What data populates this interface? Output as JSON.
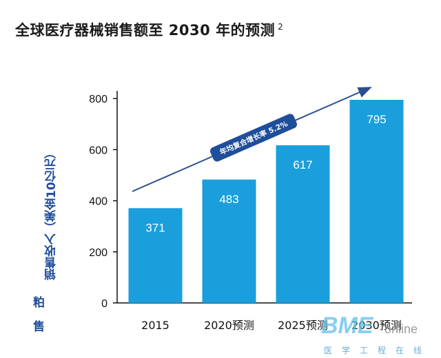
{
  "title_text": "全球医疗器械销售额至 2030 年的预测",
  "title_note": "2",
  "side_chars": [
    "粕",
    "售"
  ],
  "watermark": {
    "main": "BME",
    "online": "online",
    "sub": "医学工程在线"
  },
  "chart_data": {
    "type": "bar",
    "title": "全球医疗器械销售额至 2030 年的预测",
    "ylabel": "销售收入（美金10亿元）",
    "categories": [
      "2015",
      "2020预测",
      "2025预测",
      "2030预测"
    ],
    "values": [
      371,
      483,
      617,
      795
    ],
    "yticks": [
      0,
      200,
      400,
      600,
      800
    ],
    "ylim": [
      0,
      830
    ],
    "bar_color": "#1a9fdc",
    "trend_label": "年均复合增长率 5.2%",
    "trend_badge_color": "#1f4e9b",
    "trend_line_color": "#2a4f8f",
    "grid": false
  }
}
